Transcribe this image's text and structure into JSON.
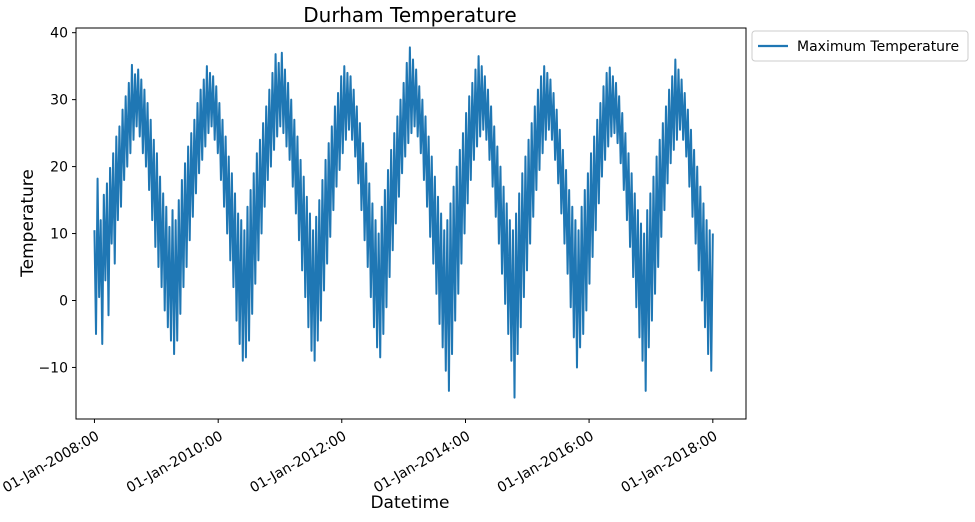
{
  "chart_data": {
    "type": "line",
    "title": "Durham Temperature",
    "xlabel": "Datetime",
    "ylabel": "Temperature",
    "xlim": [
      "2007-09-14",
      "2018-07-16"
    ],
    "ylim": [
      -17.7,
      40.7
    ],
    "x_ticks": [
      "01-Jan-2008:00",
      "01-Jan-2010:00",
      "01-Jan-2012:00",
      "01-Jan-2014:00",
      "01-Jan-2016:00",
      "01-Jan-2018:00"
    ],
    "y_ticks": [
      40,
      30,
      20,
      10,
      0,
      -10
    ],
    "y_tick_labels": [
      "40",
      "30",
      "20",
      "10",
      "0",
      "−10"
    ],
    "legend_position": "outside-top-right",
    "series": [
      {
        "name": "Maximum Temperature",
        "color": "#1f77b4",
        "x_start": "2008-01-01",
        "x_end": "2018-01-01",
        "x_step": "7 days",
        "values": [
          10.5,
          -5.0,
          18.2,
          0.5,
          12.0,
          -6.5,
          15.8,
          3.0,
          17.5,
          -2.2,
          19.8,
          8.5,
          22.0,
          5.5,
          24.5,
          12.0,
          26.0,
          14.0,
          28.5,
          18.0,
          30.5,
          20.0,
          32.5,
          22.0,
          35.2,
          24.0,
          33.8,
          26.0,
          34.5,
          24.5,
          33.0,
          22.0,
          31.5,
          20.0,
          29.5,
          16.5,
          27.0,
          12.0,
          24.0,
          8.0,
          22.0,
          5.0,
          18.5,
          2.0,
          16.0,
          -1.5,
          14.0,
          -4.0,
          11.0,
          -6.0,
          13.5,
          -8.0,
          12.0,
          -6.0,
          15.0,
          -2.0,
          18.0,
          2.0,
          20.5,
          5.0,
          23.0,
          9.0,
          25.0,
          12.5,
          27.0,
          16.0,
          29.5,
          19.0,
          31.5,
          21.0,
          33.0,
          23.0,
          35.0,
          25.0,
          34.0,
          26.0,
          33.5,
          24.0,
          32.0,
          22.0,
          29.5,
          18.0,
          27.0,
          14.0,
          24.5,
          10.0,
          21.5,
          6.0,
          19.0,
          2.0,
          16.0,
          -3.0,
          13.0,
          -6.5,
          12.0,
          -9.0,
          10.5,
          -8.5,
          14.0,
          -6.0,
          16.5,
          -2.0,
          19.0,
          2.5,
          22.0,
          6.0,
          24.0,
          10.0,
          26.5,
          14.0,
          29.0,
          18.0,
          31.5,
          20.0,
          34.0,
          22.5,
          36.8,
          24.5,
          35.5,
          26.0,
          37.0,
          25.0,
          34.5,
          23.0,
          32.5,
          21.0,
          30.0,
          17.0,
          27.0,
          13.0,
          24.5,
          9.0,
          21.0,
          4.5,
          18.5,
          0.5,
          15.5,
          -4.0,
          13.0,
          -7.5,
          10.5,
          -9.0,
          12.5,
          -6.0,
          15.0,
          -3.0,
          18.0,
          1.5,
          21.0,
          5.5,
          23.5,
          9.5,
          26.0,
          13.5,
          29.0,
          17.0,
          31.0,
          19.5,
          33.5,
          22.0,
          35.0,
          24.0,
          34.0,
          25.5,
          33.5,
          24.0,
          31.5,
          21.5,
          29.0,
          17.5,
          26.5,
          13.5,
          23.5,
          9.0,
          20.5,
          5.0,
          17.5,
          0.5,
          14.5,
          -4.0,
          12.0,
          -7.0,
          10.0,
          -8.5,
          14.0,
          -5.0,
          16.5,
          -1.0,
          19.5,
          3.5,
          22.5,
          7.5,
          25.0,
          11.5,
          27.5,
          15.5,
          30.0,
          19.0,
          32.5,
          21.5,
          35.5,
          23.5,
          37.8,
          25.0,
          36.0,
          26.0,
          34.5,
          24.5,
          32.0,
          22.0,
          30.0,
          18.0,
          27.5,
          14.0,
          24.5,
          9.5,
          21.5,
          5.5,
          18.5,
          1.0,
          15.5,
          -3.5,
          13.0,
          -7.0,
          10.5,
          -10.5,
          12.0,
          -13.5,
          14.5,
          -8.0,
          17.0,
          -3.0,
          20.0,
          1.0,
          22.5,
          5.5,
          25.0,
          10.0,
          28.0,
          14.5,
          30.5,
          18.0,
          32.5,
          21.0,
          34.5,
          23.0,
          36.5,
          24.5,
          35.0,
          25.5,
          33.5,
          24.0,
          31.5,
          21.0,
          29.0,
          17.0,
          26.0,
          12.5,
          23.0,
          8.5,
          20.0,
          4.0,
          17.0,
          -0.5,
          14.5,
          -5.0,
          12.0,
          -9.0,
          10.5,
          -14.5,
          13.0,
          -8.0,
          16.0,
          -4.0,
          19.0,
          0.5,
          21.5,
          4.5,
          24.0,
          8.5,
          26.5,
          12.5,
          29.0,
          16.5,
          31.5,
          19.5,
          33.5,
          22.0,
          35.0,
          24.0,
          34.0,
          25.5,
          33.0,
          24.0,
          31.0,
          21.0,
          28.5,
          17.5,
          25.5,
          13.0,
          22.5,
          8.5,
          19.5,
          4.0,
          16.5,
          -1.0,
          14.0,
          -5.5,
          12.0,
          -10.0,
          10.5,
          -7.0,
          14.0,
          -5.0,
          16.5,
          -1.5,
          19.0,
          2.5,
          22.0,
          6.5,
          24.5,
          10.5,
          27.0,
          14.5,
          29.5,
          18.5,
          32.0,
          21.0,
          34.0,
          23.0,
          34.8,
          24.5,
          33.5,
          25.0,
          32.5,
          23.5,
          30.5,
          20.5,
          28.0,
          16.5,
          25.0,
          12.0,
          22.0,
          8.0,
          19.0,
          3.5,
          16.0,
          -1.0,
          13.5,
          -5.5,
          11.5,
          -9.0,
          10.0,
          -13.5,
          13.5,
          -7.0,
          16.0,
          -3.0,
          18.5,
          1.0,
          21.5,
          5.0,
          24.0,
          9.5,
          26.5,
          13.5,
          29.0,
          17.5,
          31.5,
          20.5,
          33.5,
          22.5,
          36.0,
          24.0,
          34.5,
          25.5,
          33.0,
          24.0,
          31.0,
          21.5,
          28.5,
          17.0,
          25.5,
          12.5,
          22.5,
          8.5,
          20.0,
          4.5,
          17.0,
          0.0,
          14.5,
          -4.0,
          12.0,
          -8.0,
          10.5,
          -10.5,
          10.0
        ]
      }
    ]
  }
}
